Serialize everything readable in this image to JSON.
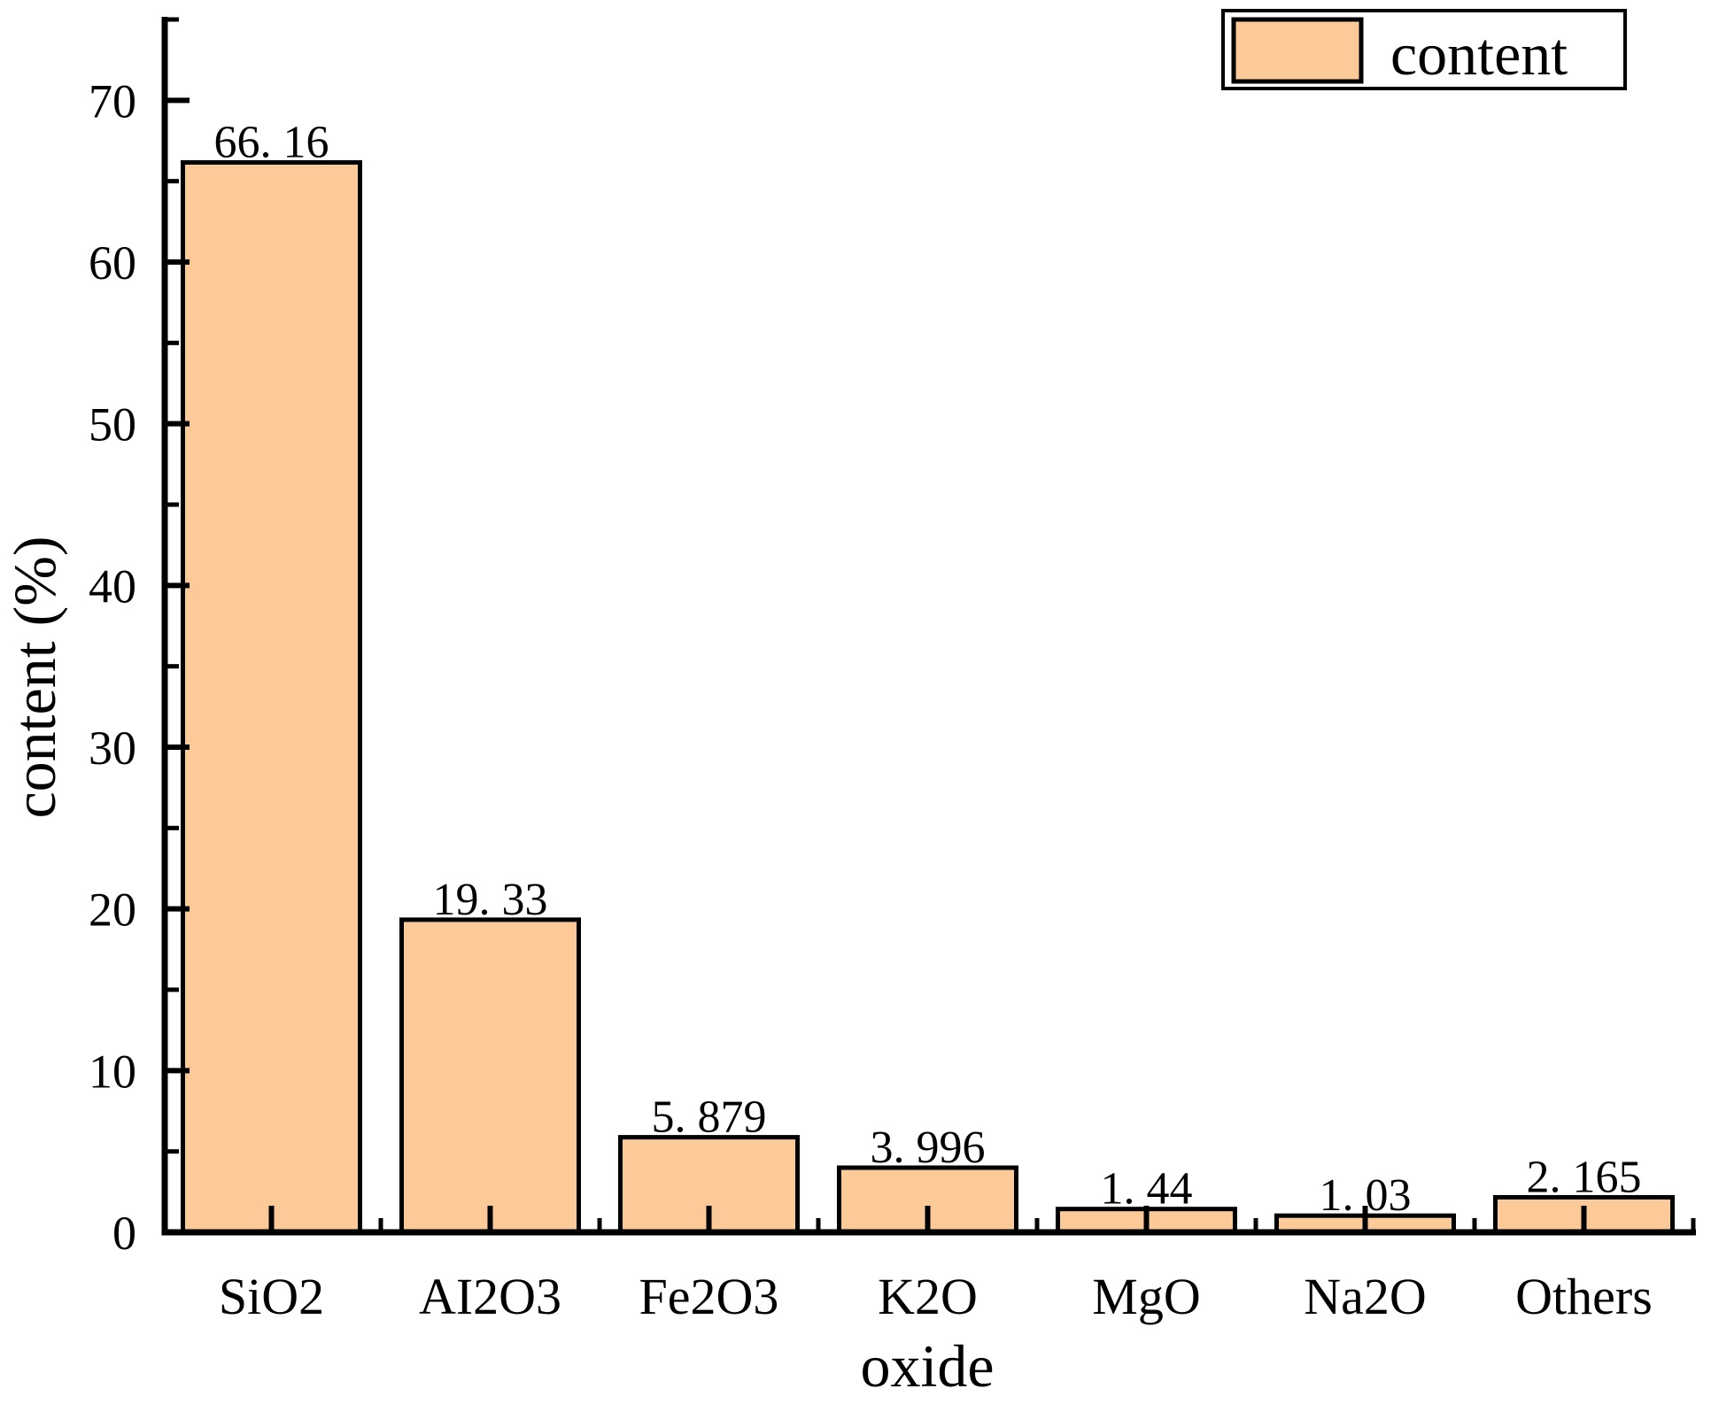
{
  "figure": {
    "background_color": "#FFFFFF",
    "text_color": "#000000"
  },
  "chart_data": {
    "type": "bar",
    "title": "",
    "xlabel": "oxide",
    "ylabel": "content (%)",
    "categories": [
      "SiO2",
      "AI2O3",
      "Fe2O3",
      "K2O",
      "MgO",
      "Na2O",
      "Others"
    ],
    "values": [
      66.16,
      19.33,
      5.879,
      3.996,
      1.44,
      1.03,
      2.165
    ],
    "bar_value_labels": [
      "66. 16",
      "19. 33",
      "5. 879",
      "3. 996",
      "1. 44",
      "1. 03",
      "2. 165"
    ],
    "series_name": "content",
    "ylim": [
      0,
      75
    ],
    "y_major_tick_interval": 10,
    "y_minor_tick_interval": 5,
    "y_tick_labels": [
      "0",
      "10",
      "20",
      "30",
      "40",
      "50",
      "60",
      "70"
    ],
    "grid": false,
    "tick_direction": "in",
    "bar_fill_color": "#FCC998",
    "bar_border_color": "#000000",
    "axis_color": "#000000",
    "legend": {
      "position": "top-right",
      "entries": [
        {
          "label": "content",
          "swatch_color": "#FCC998"
        }
      ]
    }
  }
}
